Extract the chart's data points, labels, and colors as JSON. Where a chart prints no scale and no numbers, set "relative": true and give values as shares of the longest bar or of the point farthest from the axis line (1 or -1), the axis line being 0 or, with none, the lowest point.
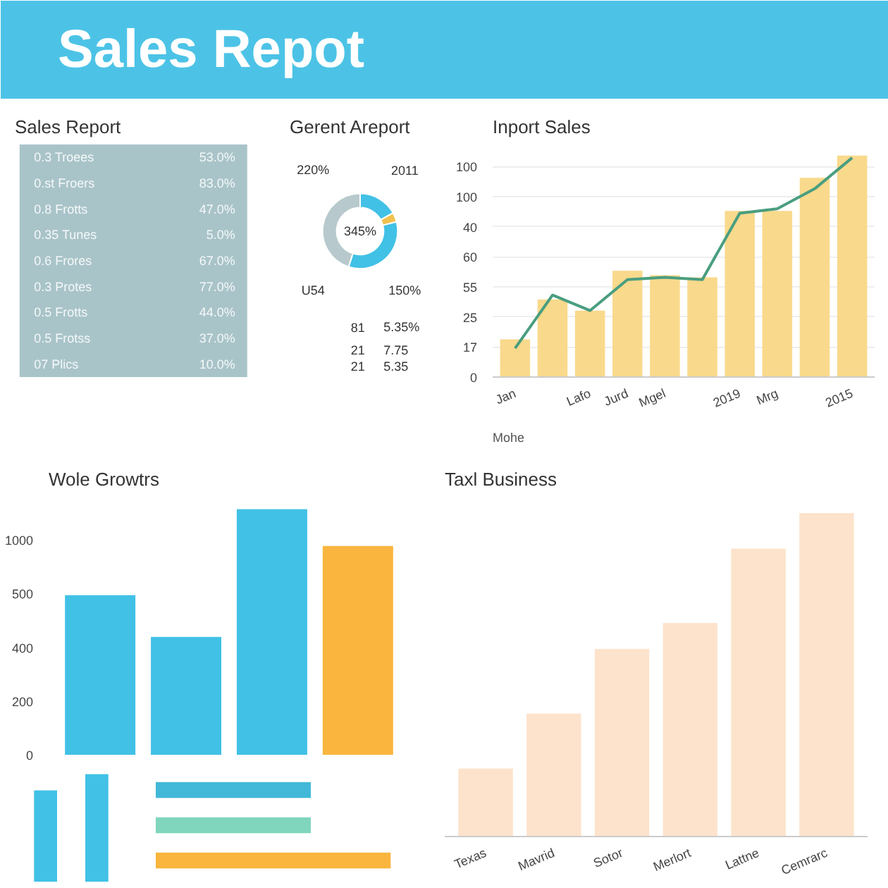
{
  "chart_data": [
    {
      "type": "other",
      "title": "Sales Repot"
    },
    {
      "type": "other",
      "title": "Sales Report",
      "annotations": [
        "0.3 Troees",
        "53.0%",
        "0.st Froers",
        "83.0%",
        "0.8 Frotts",
        "47.0%",
        "0.35 Tunes",
        "5.0%",
        "0.6 Frores",
        "67.0%",
        "0.3 Protes",
        "77.0%",
        "0.5 Frotts",
        "44.0%",
        "0.5 Frotss",
        "37.0%",
        "07 Plics",
        "10.0%"
      ]
    },
    {
      "type": "donut",
      "title": "Gerent Areport",
      "categories": [
        null,
        null,
        null,
        null
      ],
      "values": [
        17,
        4,
        34,
        45
      ],
      "colors": [
        "#41c1e6",
        "#f2c14e",
        "#41c1e6",
        "#b7c9cc"
      ],
      "annotations": [
        "220%",
        "2011",
        "345%",
        "U54",
        "150%",
        "81",
        "5.35%",
        "21",
        "7.75",
        "21",
        "5.35"
      ]
    },
    {
      "type": "bar",
      "title": "Inport Sales",
      "relative": true,
      "categories": [
        "Jan",
        null,
        "Lafo",
        "Jurd",
        "Mgel",
        null,
        "2019",
        "Mrg",
        null,
        "2015"
      ],
      "series": [
        {
          "type": "bar",
          "color": "#f9d98c",
          "values": [
            0.17,
            0.35,
            0.3,
            0.48,
            0.46,
            0.45,
            0.75,
            0.75,
            0.9,
            1
          ]
        },
        {
          "type": "line",
          "color": "#4a9e7f",
          "values": [
            0.13,
            0.37,
            0.3,
            0.44,
            0.45,
            0.44,
            0.74,
            0.76,
            0.85,
            0.99
          ]
        }
      ],
      "annotations": [
        "Mohe",
        "0",
        "17",
        "25",
        "55",
        "60",
        "40",
        "100",
        "100"
      ]
    },
    {
      "type": "bar",
      "title": "Wole Growtrs",
      "relative": true,
      "categories": [
        null,
        null,
        null,
        null
      ],
      "values": [
        0.65,
        0.48,
        1,
        0.85
      ],
      "colors": [
        "#41c1e6",
        "#41c1e6",
        "#41c1e6",
        "#f9b53e"
      ],
      "annotations": [
        "0",
        "200",
        "400",
        "500",
        "1000"
      ]
    },
    {
      "type": "bar",
      "relative": true,
      "categories": [
        null,
        null
      ],
      "values": [
        0.85,
        1
      ],
      "color": "#41c1e6"
    },
    {
      "type": "bar",
      "relative": true,
      "orientation": "horizontal",
      "categories": [
        null,
        null,
        null
      ],
      "values": [
        0.66,
        0.66,
        1
      ],
      "colors": [
        "#41b8d8",
        "#7fd6bd",
        "#f9b53e"
      ]
    },
    {
      "type": "bar",
      "relative": true,
      "title": "Taxl Business",
      "categories": [
        "Texas",
        "Mavrid",
        "Sotor",
        "Merlort",
        "Lattne",
        "Cemrarc"
      ],
      "values": [
        0.21,
        0.38,
        0.58,
        0.66,
        0.89,
        1
      ],
      "color": "#fde3cc"
    }
  ]
}
